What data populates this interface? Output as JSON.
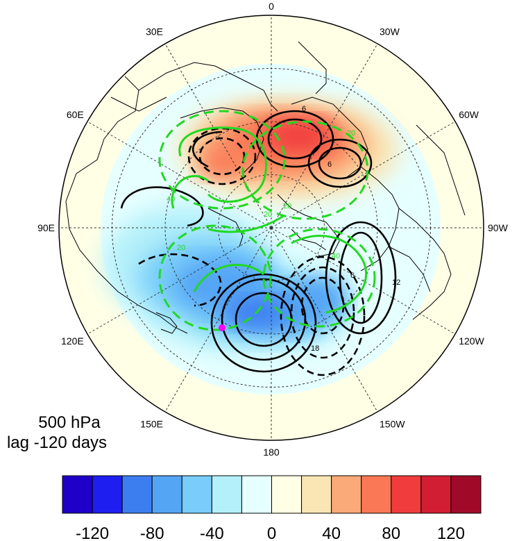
{
  "map": {
    "projection": "polar stereographic (north pole)",
    "longitude_labels": [
      {
        "lon": 0,
        "text": "0"
      },
      {
        "lon": 30,
        "text": "30E"
      },
      {
        "lon": -30,
        "text": "30W"
      },
      {
        "lon": 60,
        "text": "60E"
      },
      {
        "lon": -60,
        "text": "60W"
      },
      {
        "lon": 90,
        "text": "90E"
      },
      {
        "lon": -90,
        "text": "90W"
      },
      {
        "lon": 120,
        "text": "120E"
      },
      {
        "lon": -120,
        "text": "120W"
      },
      {
        "lon": 150,
        "text": "150E"
      },
      {
        "lon": -150,
        "text": "150W"
      },
      {
        "lon": 180,
        "text": "180"
      }
    ],
    "annotation_line1": "500 hPa",
    "annotation_line2": "lag -120 days",
    "contour_labels": [
      "6",
      "6",
      "6",
      "12",
      "18",
      "40",
      "40",
      "20",
      "20",
      "20",
      "20"
    ],
    "colors": {
      "positive_line": "#000000",
      "green_contour": "#22d822",
      "marker": "#ff00ff"
    }
  },
  "colorbar": {
    "colors": [
      "#1f00c8",
      "#1e1ef0",
      "#3c7ef0",
      "#55a5f5",
      "#78cdfa",
      "#b4f0fa",
      "#e6ffff",
      "#ffffe6",
      "#fae6b4",
      "#faaa78",
      "#fa7855",
      "#f03c3c",
      "#d21e32",
      "#a00a28"
    ],
    "tick_labels": [
      "-120",
      "-80",
      "-40",
      "0",
      "40",
      "80",
      "120"
    ],
    "tick_values": [
      -120,
      -80,
      -40,
      0,
      40,
      80,
      120
    ]
  }
}
